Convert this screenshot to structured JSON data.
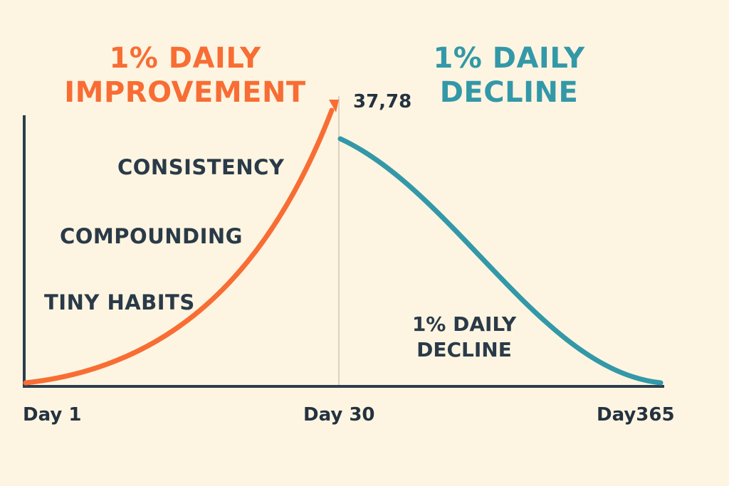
{
  "colors": {
    "background": "#fdf5e1",
    "improvement": "#f86d34",
    "decline": "#3398a8",
    "axis": "#2c3e4c",
    "text": "#2a3a48",
    "divider": "#d9d2c0"
  },
  "headings": {
    "improvement": {
      "line1": "1% DAILY",
      "line2": "IMPROVEMENT"
    },
    "decline": {
      "line1": "1% DAILY",
      "line2": "DECLINE"
    }
  },
  "annotations": {
    "consistency": "CONSISTENCY",
    "compounding": "COMPOUNDING",
    "tiny_habits": "TINY HABITS",
    "peak_value": "37,78",
    "decline_label": {
      "line1": "1% DAILY",
      "line2": "DECLINE"
    }
  },
  "chart_data": {
    "type": "line",
    "title": "",
    "x_tick_labels": [
      "Day 1",
      "Day 30",
      "Day365"
    ],
    "grid": false,
    "series": [
      {
        "name": "1% DAILY IMPROVEMENT",
        "color": "#f86d34",
        "shape": "exponential-growth",
        "from_tick": "Day 1",
        "to_tick": "Day 30",
        "end_marker": "arrow",
        "peak_label": "37,78"
      },
      {
        "name": "1% DAILY DECLINE",
        "color": "#3398a8",
        "shape": "s-curve-decay",
        "from_tick": "Day 30",
        "to_tick": "Day365"
      }
    ]
  }
}
